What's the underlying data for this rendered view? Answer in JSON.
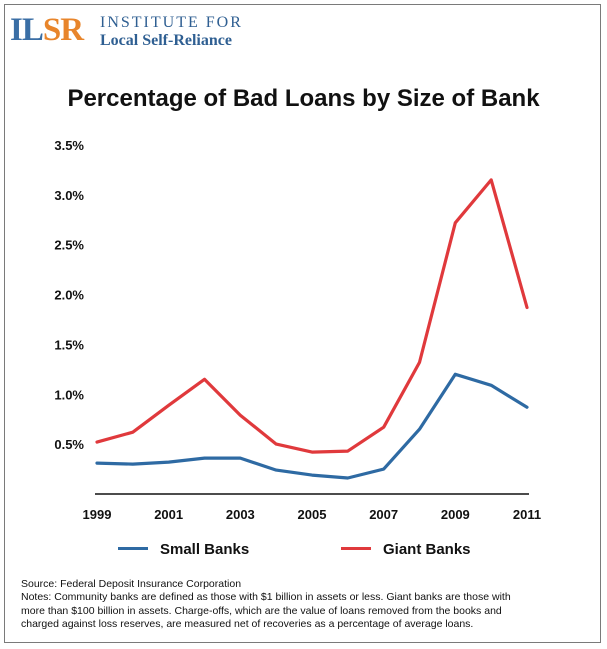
{
  "logo": {
    "mark_prefix": "IL",
    "mark_suffix": "SR",
    "line1": "INSTITUTE FOR",
    "line2": "Local Self-Reliance"
  },
  "chart_data": {
    "type": "line",
    "title": "Percentage of Bad Loans by Size of Bank",
    "xlabel": "",
    "ylabel": "",
    "x": [
      1999,
      2000,
      2001,
      2002,
      2003,
      2004,
      2005,
      2006,
      2007,
      2008,
      2009,
      2010,
      2011
    ],
    "x_tick_labels": [
      "1999",
      "2001",
      "2003",
      "2005",
      "2007",
      "2009",
      "2011"
    ],
    "x_tick_values": [
      1999,
      2001,
      2003,
      2005,
      2007,
      2009,
      2011
    ],
    "y_tick_labels": [
      "0.5%",
      "1.0%",
      "1.5%",
      "2.0%",
      "2.5%",
      "3.0%",
      "3.5%"
    ],
    "y_tick_values": [
      0.5,
      1.0,
      1.5,
      2.0,
      2.5,
      3.0,
      3.5
    ],
    "xlim": [
      1999,
      2011
    ],
    "ylim": [
      0.0,
      3.5
    ],
    "grid": false,
    "legend_position": "bottom",
    "series": [
      {
        "name": "Small Banks",
        "color": "#2e6aa3",
        "values": [
          0.31,
          0.3,
          0.32,
          0.36,
          0.36,
          0.24,
          0.19,
          0.16,
          0.25,
          0.65,
          1.2,
          1.09,
          0.87
        ]
      },
      {
        "name": "Giant Banks",
        "color": "#e0393c",
        "values": [
          0.52,
          0.62,
          0.89,
          1.15,
          0.79,
          0.5,
          0.42,
          0.43,
          0.67,
          1.32,
          2.72,
          3.15,
          1.87
        ]
      }
    ]
  },
  "notes": {
    "source": "Source: Federal Deposit Insurance Corporation",
    "line1": "Notes:  Community banks are defined as those with $1 billion in assets or less. Giant banks are those with",
    "line2": "more than $100 billion in assets.  Charge-offs, which are the value of loans removed from the books and",
    "line3": "charged against loss reserves, are measured net of recoveries as a percentage of average loans."
  }
}
